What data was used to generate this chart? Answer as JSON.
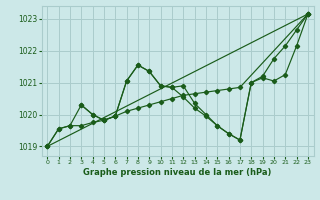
{
  "background_color": "#cce8e8",
  "grid_color": "#aacccc",
  "line_color": "#1a5c1a",
  "title": "Graphe pression niveau de la mer (hPa)",
  "xlim": [
    -0.5,
    23.5
  ],
  "ylim": [
    1018.7,
    1023.4
  ],
  "yticks": [
    1019,
    1020,
    1021,
    1022,
    1023
  ],
  "xticks": [
    0,
    1,
    2,
    3,
    4,
    5,
    6,
    7,
    8,
    9,
    10,
    11,
    12,
    13,
    14,
    15,
    16,
    17,
    18,
    19,
    20,
    21,
    22,
    23
  ],
  "series": [
    {
      "x": [
        0,
        1,
        2,
        3,
        4,
        5,
        6,
        7,
        8,
        9,
        10,
        11,
        12,
        13,
        14,
        15,
        16,
        17,
        18,
        19,
        20,
        21,
        22,
        23
      ],
      "y": [
        1019.0,
        1019.55,
        1019.65,
        1019.65,
        1019.75,
        1019.82,
        1019.95,
        1021.05,
        1021.55,
        1021.35,
        1020.9,
        1020.85,
        1020.9,
        1020.35,
        1020.0,
        1019.65,
        1019.4,
        1019.2,
        1021.0,
        1021.2,
        1021.75,
        1022.15,
        1022.65,
        1023.15
      ]
    },
    {
      "x": [
        0,
        23
      ],
      "y": [
        1019.0,
        1023.15
      ]
    },
    {
      "x": [
        0,
        1,
        2,
        3,
        4,
        5,
        6,
        7,
        8,
        9,
        10,
        11,
        12,
        13,
        14,
        15,
        16,
        17,
        23
      ],
      "y": [
        1019.0,
        1019.55,
        1019.65,
        1020.3,
        1020.0,
        1019.82,
        1019.95,
        1020.1,
        1020.2,
        1020.3,
        1020.4,
        1020.5,
        1020.6,
        1020.65,
        1020.7,
        1020.75,
        1020.8,
        1020.85,
        1023.15
      ]
    },
    {
      "x": [
        3,
        4,
        5,
        6,
        7,
        8,
        9,
        10,
        11,
        12,
        13,
        14,
        15,
        16,
        17,
        18,
        19,
        20,
        21,
        22,
        23
      ],
      "y": [
        1020.3,
        1020.0,
        1019.82,
        1019.95,
        1021.05,
        1021.55,
        1021.35,
        1020.9,
        1020.85,
        1020.55,
        1020.2,
        1019.95,
        1019.65,
        1019.4,
        1019.2,
        1021.0,
        1021.15,
        1021.05,
        1021.25,
        1022.15,
        1023.15
      ]
    }
  ]
}
